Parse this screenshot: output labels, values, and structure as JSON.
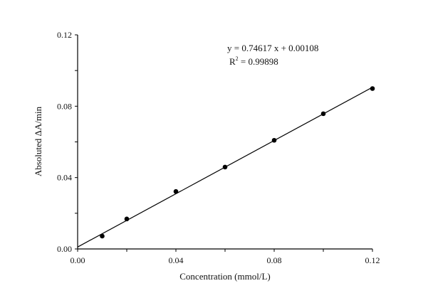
{
  "chart_data": {
    "type": "scatter",
    "title": "",
    "xlabel": "Concentration (mmol/L)",
    "ylabel": "Absoluted ΔA/min",
    "xlim": [
      0,
      0.12
    ],
    "ylim": [
      0,
      0.12
    ],
    "xticks": [
      "0.00",
      "0.04",
      "0.08",
      "0.12"
    ],
    "yticks": [
      "0.00",
      "0.04",
      "0.08",
      "0.12"
    ],
    "x_minor_step": 0.02,
    "y_minor_step": 0.02,
    "grid": false,
    "legend": "none",
    "points": {
      "x": [
        0.01,
        0.02,
        0.04,
        0.06,
        0.08,
        0.1,
        0.12
      ],
      "y": [
        0.0072,
        0.0168,
        0.0322,
        0.0459,
        0.0609,
        0.0758,
        0.0899
      ]
    },
    "fit": {
      "slope": 0.74617,
      "intercept": 0.00108
    },
    "annotations": {
      "equation": "y = 0.74617 x + 0.00108",
      "r2_label": "R",
      "r2_sup": "2",
      "r2_value": " = 0.99898"
    },
    "colors": {
      "marks": "#000000",
      "axes": "#000000"
    }
  }
}
